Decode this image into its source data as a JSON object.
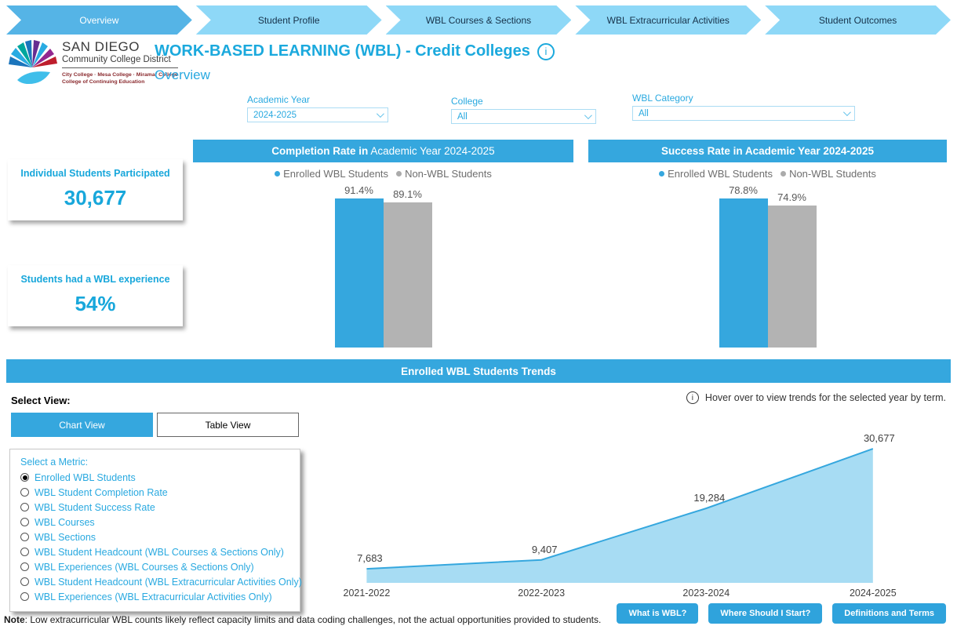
{
  "nav": {
    "tabs": [
      {
        "label": "Overview",
        "active": true
      },
      {
        "label": "Student Profile",
        "active": false
      },
      {
        "label": "WBL Courses & Sections",
        "active": false
      },
      {
        "label": "WBL Extracurricular Activities",
        "active": false
      },
      {
        "label": "Student Outcomes",
        "active": false
      }
    ]
  },
  "logo": {
    "line1": "SAN DIEGO",
    "line2": "Community College District",
    "line3": "City College · Mesa College · Miramar College",
    "line4": "College of Continuing Education"
  },
  "header": {
    "title": "WORK-BASED LEARNING (WBL) - Credit Colleges",
    "subtitle": "Overview",
    "info_glyph": "i"
  },
  "filters": [
    {
      "label": "Academic Year",
      "value": "2024-2025"
    },
    {
      "label": "College",
      "value": "All"
    },
    {
      "label": "WBL Category",
      "value": "All"
    }
  ],
  "kpis": [
    {
      "label": "Individual Students Participated",
      "value": "30,677"
    },
    {
      "label": "Students had a WBL experience",
      "value": "54%"
    }
  ],
  "chart_data": [
    {
      "type": "bar",
      "title_bold": "Completion Rate in",
      "title_rest": " Academic Year 2024-2025",
      "legend": [
        "Enrolled WBL Students",
        "Non-WBL Students"
      ],
      "categories": [
        "Enrolled WBL Students",
        "Non-WBL Students"
      ],
      "values": [
        91.4,
        89.1
      ],
      "value_labels": [
        "91.4%",
        "89.1%"
      ],
      "colors": [
        "#35A7DE",
        "#B3B3B3"
      ],
      "ylim": [
        0,
        100
      ]
    },
    {
      "type": "bar",
      "title_bold": "Success Rate in Academic Year 2024-2025",
      "title_rest": "",
      "legend": [
        "Enrolled WBL Students",
        "Non-WBL Students"
      ],
      "categories": [
        "Enrolled WBL Students",
        "Non-WBL Students"
      ],
      "values": [
        78.8,
        74.9
      ],
      "value_labels": [
        "78.8%",
        "74.9%"
      ],
      "colors": [
        "#35A7DE",
        "#B3B3B3"
      ],
      "ylim": [
        0,
        100
      ]
    },
    {
      "type": "area",
      "title": "Enrolled WBL Students Trends",
      "categories": [
        "2021-2022",
        "2022-2023",
        "2023-2024",
        "2024-2025"
      ],
      "values": [
        7683,
        9407,
        19284,
        30677
      ],
      "value_labels": [
        "7,683",
        "9,407",
        "19,284",
        "30,677"
      ],
      "ylim": [
        5000,
        31000
      ],
      "line_color": "#35A7DE",
      "fill_color": "#A7DCF3"
    }
  ],
  "trends": {
    "banner": "Enrolled WBL Students Trends",
    "select_view_label": "Select View:",
    "views": [
      {
        "label": "Chart View",
        "active": true
      },
      {
        "label": "Table View",
        "active": false
      }
    ],
    "hover_hint": "Hover over to view trends for the selected year by term.",
    "hover_glyph": "i",
    "metric_title": "Select a Metric:",
    "metrics": [
      {
        "label": "Enrolled WBL Students",
        "selected": true
      },
      {
        "label": "WBL Student Completion Rate",
        "selected": false
      },
      {
        "label": "WBL Student Success Rate",
        "selected": false
      },
      {
        "label": "WBL Courses",
        "selected": false
      },
      {
        "label": "WBL Sections",
        "selected": false
      },
      {
        "label": "WBL Student Headcount (WBL Courses & Sections Only)",
        "selected": false
      },
      {
        "label": "WBL Experiences (WBL Courses & Sections Only)",
        "selected": false
      },
      {
        "label": "WBL Student Headcount (WBL Extracurricular Activities Only)",
        "selected": false
      },
      {
        "label": "WBL Experiences (WBL Extracurricular Activities Only)",
        "selected": false
      }
    ]
  },
  "buttons": [
    {
      "label": "What is WBL?"
    },
    {
      "label": "Where Should I Start?"
    },
    {
      "label": "Definitions and Terms"
    }
  ],
  "note": {
    "bold": "Note",
    "text": ": Low extracurricular WBL counts likely reflect capacity limits and data coding challenges, not the actual opportunities provided to students."
  },
  "colors": {
    "accent": "#35A7DE",
    "nav_active": "#55B4E6",
    "nav_inactive": "#8ED8F7",
    "title_blue": "#1BA9DD",
    "bar_gray": "#B3B3B3",
    "area_fill": "#A7DCF3"
  }
}
